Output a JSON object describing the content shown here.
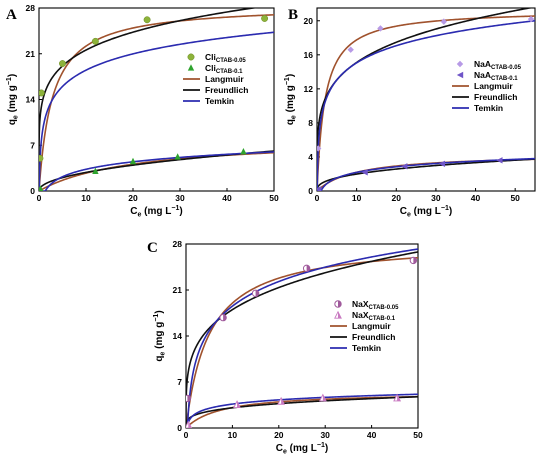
{
  "chart_data": [
    {
      "panel": "A",
      "type": "scatter",
      "xlabel": "Ce (mg L−1)",
      "ylabel": "qe (mg g−1)",
      "xlim": [
        0,
        50
      ],
      "ylim": [
        0,
        28
      ],
      "xticks": [
        0,
        10,
        20,
        30,
        40,
        50
      ],
      "yticks": [
        0,
        7,
        14,
        21,
        28
      ],
      "legend_position": "center-right",
      "series": [
        {
          "name": "Cli",
          "subscript": "CTAB-0.05",
          "kind": "points",
          "marker": "circle",
          "color": "#8db33a",
          "x": [
            0.2,
            0.5,
            5,
            12,
            23,
            48
          ],
          "y": [
            5,
            15,
            19.5,
            22.9,
            26.2,
            26.4
          ]
        },
        {
          "name": "Cli",
          "subscript": "CTAB-0.1",
          "kind": "points",
          "marker": "triangle",
          "color": "#2ea32e",
          "x": [
            0.3,
            12,
            20,
            29.5,
            43.5
          ],
          "y": [
            0.3,
            3.0,
            4.5,
            5.2,
            6.0
          ]
        },
        {
          "name": "Langmuir",
          "kind": "line",
          "color": "#a0522d",
          "fits": [
            {
              "model": "langmuir",
              "qmax": 28.5,
              "K": 0.35
            },
            {
              "model": "langmuir",
              "qmax": 8.2,
              "K": 0.05
            }
          ]
        },
        {
          "name": "Freundlich",
          "kind": "line",
          "color": "#111111",
          "fits": [
            {
              "model": "freundlich",
              "KF": 14.5,
              "n": 5.8
            },
            {
              "model": "freundlich",
              "KF": 0.95,
              "n": 2.1
            }
          ]
        },
        {
          "name": "Temkin",
          "kind": "line",
          "color": "#2b2bb0",
          "fits": [
            {
              "model": "temkin",
              "B": 3.6,
              "A": 17
            },
            {
              "model": "temkin",
              "B": 1.65,
              "A": 0.75
            }
          ]
        }
      ]
    },
    {
      "panel": "B",
      "type": "scatter",
      "xlabel": "Ce (mg L−1)",
      "ylabel": "qe (mg g−1)",
      "xlim": [
        0,
        55
      ],
      "ylim": [
        0,
        21.5
      ],
      "xticks": [
        0,
        10,
        20,
        30,
        40,
        50
      ],
      "yticks": [
        0,
        4,
        8,
        12,
        16,
        20
      ],
      "legend_position": "center-right",
      "series": [
        {
          "name": "NaA",
          "subscript": "CTAB-0.05",
          "kind": "points",
          "marker": "diamond",
          "color": "#b79ae6",
          "x": [
            0.3,
            8.5,
            16,
            32,
            54
          ],
          "y": [
            5,
            16.6,
            19.1,
            19.9,
            20.2
          ]
        },
        {
          "name": "NaA",
          "subscript": "CTAB-0.1",
          "kind": "points",
          "marker": "left-triangle",
          "color": "#6f55c8",
          "x": [
            0.3,
            12,
            22,
            31.5,
            46
          ],
          "y": [
            0.2,
            2.2,
            2.9,
            3.2,
            3.6
          ]
        },
        {
          "name": "Langmuir",
          "kind": "line",
          "color": "#a0522d",
          "fits": [
            {
              "model": "langmuir",
              "qmax": 21.3,
              "K": 0.5
            },
            {
              "model": "langmuir",
              "qmax": 4.4,
              "K": 0.1
            }
          ]
        },
        {
          "name": "Freundlich",
          "kind": "line",
          "color": "#111111",
          "fits": [
            {
              "model": "freundlich",
              "KF": 9.3,
              "n": 4.75
            },
            {
              "model": "freundlich",
              "KF": 0.85,
              "n": 2.7
            }
          ]
        },
        {
          "name": "Temkin",
          "kind": "line",
          "color": "#2b2bb0",
          "fits": [
            {
              "model": "temkin",
              "B": 2.9,
              "A": 18
            },
            {
              "model": "temkin",
              "B": 0.95,
              "A": 1.0
            }
          ]
        }
      ]
    },
    {
      "panel": "C",
      "type": "scatter",
      "xlabel": "Ce (mg L−1)",
      "ylabel": "qe (mg g−1)",
      "xlim": [
        0,
        50
      ],
      "ylim": [
        0,
        28
      ],
      "xticks": [
        0,
        10,
        20,
        30,
        40,
        50
      ],
      "yticks": [
        0,
        7,
        14,
        21,
        28
      ],
      "legend_position": "center-right",
      "series": [
        {
          "name": "NaX",
          "subscript": "CTAB-0.05",
          "kind": "points",
          "marker": "half-circle",
          "color": "#a05a9c",
          "x": [
            0.3,
            8,
            15,
            26,
            49
          ],
          "y": [
            4.5,
            16.8,
            20.5,
            24.3,
            25.5
          ]
        },
        {
          "name": "NaX",
          "subscript": "CTAB-0.1",
          "kind": "points",
          "marker": "half-triangle",
          "color": "#c878c0",
          "x": [
            0.5,
            11,
            20.5,
            29.5,
            45.5
          ],
          "y": [
            0.5,
            3.6,
            4.1,
            4.6,
            4.6
          ]
        },
        {
          "name": "Langmuir",
          "kind": "line",
          "color": "#a0522d",
          "fits": [
            {
              "model": "langmuir",
              "qmax": 28.5,
              "K": 0.2
            },
            {
              "model": "langmuir",
              "qmax": 5.5,
              "K": 0.13
            }
          ]
        },
        {
          "name": "Freundlich",
          "kind": "line",
          "color": "#111111",
          "fits": [
            {
              "model": "freundlich",
              "KF": 10.2,
              "n": 4.05
            },
            {
              "model": "freundlich",
              "KF": 1.65,
              "n": 3.7
            }
          ]
        },
        {
          "name": "Temkin",
          "kind": "line",
          "color": "#2b2bb0",
          "fits": [
            {
              "model": "temkin",
              "B": 5.4,
              "A": 3.1
            },
            {
              "model": "temkin",
              "B": 0.93,
              "A": 5.0
            }
          ]
        }
      ]
    }
  ]
}
